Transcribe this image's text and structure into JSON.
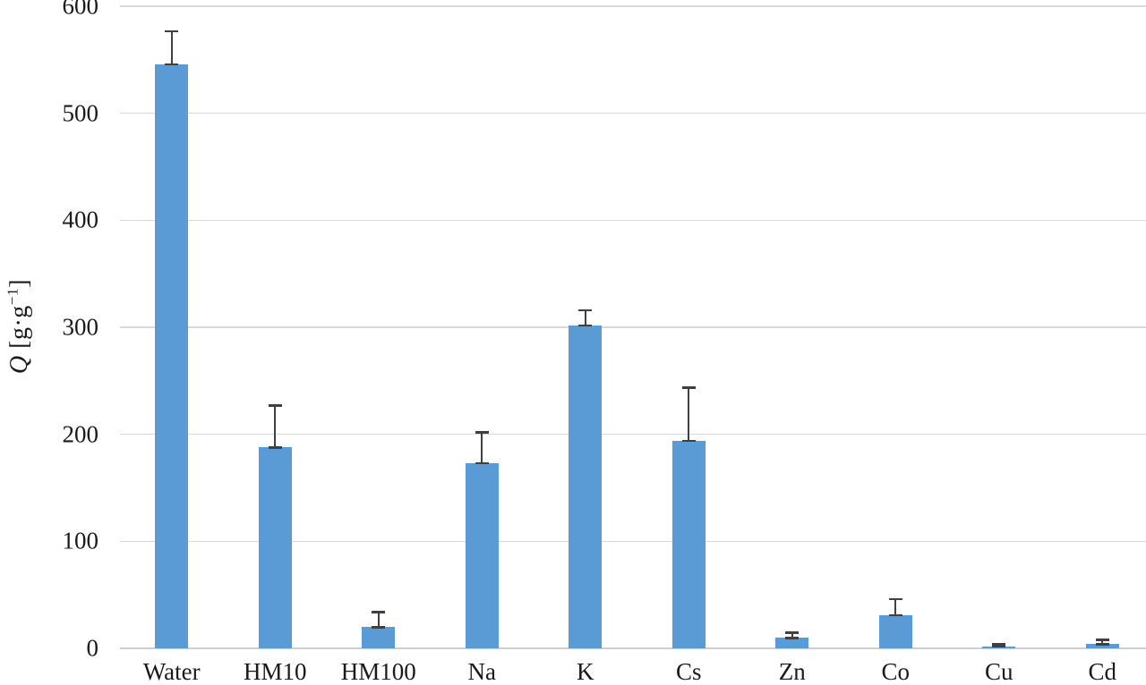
{
  "figure": {
    "background_color": "#ffffff",
    "text_color": "#1a1a1a"
  },
  "chart_data": {
    "type": "bar",
    "title": "",
    "xlabel": "",
    "ylabel": "Q [g·g⁻¹]",
    "ylabel_parts": {
      "symbol": "Q",
      "unit_open": "[g·g",
      "exponent": "−1",
      "unit_close": "]"
    },
    "categories": [
      "Water",
      "HM10",
      "HM100",
      "Na",
      "K",
      "Cs",
      "Zn",
      "Co",
      "Cu",
      "Cd"
    ],
    "values": [
      546,
      188,
      20,
      173,
      302,
      194,
      10,
      31,
      2,
      4
    ],
    "error_plus": [
      31,
      39,
      14,
      29,
      14,
      50,
      5,
      15,
      2,
      4
    ],
    "ylim": [
      0,
      600
    ],
    "yticks": [
      0,
      100,
      200,
      300,
      400,
      500,
      600
    ],
    "grid": "horizontal",
    "legend_position": "none",
    "bar_color": "#5B9BD5",
    "error_bar_color": "#404040",
    "gridline_color": "#D9D9D9",
    "axis_line_color": "#CFCFCF"
  }
}
